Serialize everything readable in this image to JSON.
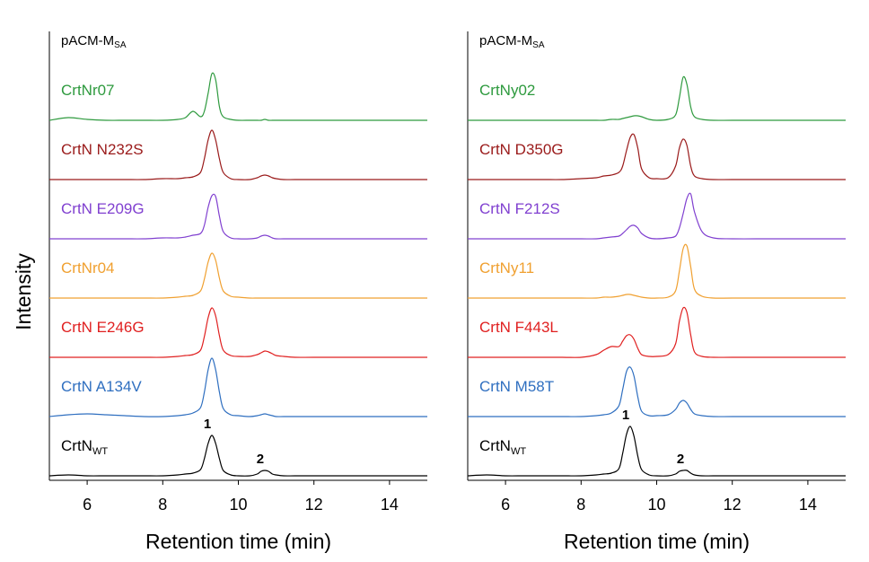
{
  "chart_data": [
    {
      "type": "line",
      "title": "pACM-M",
      "title_sub": "SA",
      "ylabel": "Intensity",
      "xlabel": "Retention time (min)",
      "xlim": [
        5,
        15
      ],
      "xticks": [
        6,
        8,
        10,
        12,
        14
      ],
      "ylim": [
        0,
        100
      ],
      "x": [
        5,
        5.5,
        6,
        6.5,
        7,
        7.5,
        8,
        8.4,
        8.6,
        8.8,
        9.0,
        9.1,
        9.2,
        9.3,
        9.4,
        9.5,
        9.6,
        9.8,
        10.0,
        10.3,
        10.5,
        10.6,
        10.7,
        10.8,
        10.9,
        11.0,
        11.2,
        11.5,
        12,
        13,
        14,
        15
      ],
      "series": [
        {
          "name": "CrtNr07",
          "color": "#2e9a3e",
          "values": [
            0,
            3,
            1,
            0,
            0,
            0,
            0,
            1,
            3,
            10,
            4,
            10,
            30,
            52,
            45,
            15,
            4,
            1,
            0,
            0,
            0,
            0,
            1,
            0,
            0,
            0,
            0,
            0,
            0,
            0,
            0,
            0
          ]
        },
        {
          "name": "CrtN N232S",
          "color": "#9a1a1a",
          "values": [
            0,
            0,
            0,
            0,
            0,
            0,
            1,
            1,
            2,
            3,
            8,
            23,
            44,
            55,
            44,
            23,
            8,
            1,
            0,
            0,
            2,
            4,
            5,
            4,
            2,
            1,
            0,
            0,
            0,
            0,
            0,
            0
          ]
        },
        {
          "name": "CrtN E209G",
          "color": "#8040d0",
          "values": [
            0,
            0,
            0,
            0,
            0,
            0,
            1,
            1,
            2,
            4,
            6,
            15,
            35,
            48,
            47,
            25,
            8,
            1,
            0,
            0,
            1,
            3,
            4,
            3,
            1,
            0,
            0,
            0,
            0,
            0,
            0,
            0
          ]
        },
        {
          "name": "CrtNr04",
          "color": "#f0a030",
          "values": [
            0,
            0,
            0,
            0,
            0,
            0,
            0,
            1,
            2,
            3,
            8,
            21,
            40,
            50,
            42,
            22,
            8,
            2,
            1,
            0,
            0,
            0,
            0,
            0,
            0,
            0,
            0,
            0,
            0,
            0,
            0,
            0
          ]
        },
        {
          "name": "CrtN E246G",
          "color": "#e02020",
          "values": [
            0,
            0,
            0,
            0,
            0,
            0,
            0,
            1,
            2,
            3,
            8,
            23,
            44,
            55,
            46,
            24,
            8,
            2,
            1,
            1,
            3,
            5,
            7,
            6,
            4,
            2,
            1,
            0,
            0,
            0,
            0,
            0
          ]
        },
        {
          "name": "CrtN A134V",
          "color": "#2f6fc0",
          "values": [
            0,
            2,
            3,
            2,
            1,
            0,
            0,
            1,
            2,
            4,
            10,
            27,
            52,
            65,
            52,
            27,
            9,
            2,
            1,
            0,
            1,
            2,
            3,
            2,
            1,
            0,
            0,
            0,
            0,
            0,
            0,
            0
          ]
        },
        {
          "name": "CrtN",
          "name_sub": "WT",
          "color": "#000000",
          "values": [
            0,
            1,
            0,
            0,
            0,
            0,
            0,
            1,
            2,
            3,
            7,
            19,
            36,
            45,
            36,
            19,
            6,
            1,
            0,
            0,
            2,
            5,
            6,
            5,
            2,
            1,
            0,
            0,
            0,
            0,
            0,
            0
          ]
        }
      ],
      "annotations": [
        {
          "text": "1",
          "x": 9.3
        },
        {
          "text": "2",
          "x": 10.7
        }
      ]
    },
    {
      "type": "line",
      "title": "pACM-M",
      "title_sub": "SA",
      "xlabel": "Retention time (min)",
      "xlim": [
        5,
        15
      ],
      "xticks": [
        6,
        8,
        10,
        12,
        14
      ],
      "ylim": [
        0,
        100
      ],
      "x": [
        5,
        5.5,
        6,
        6.5,
        7,
        7.5,
        8,
        8.4,
        8.6,
        8.8,
        9.0,
        9.1,
        9.2,
        9.3,
        9.4,
        9.5,
        9.6,
        9.8,
        10.0,
        10.3,
        10.5,
        10.6,
        10.7,
        10.8,
        10.9,
        11.0,
        11.2,
        11.5,
        12,
        13,
        14,
        15
      ],
      "series": [
        {
          "name": "CrtNy02",
          "color": "#2e9a3e",
          "values": [
            0,
            0,
            0,
            0,
            0,
            0,
            0,
            0,
            0,
            1,
            1,
            2,
            3,
            4,
            5,
            5,
            4,
            1,
            0,
            1,
            6,
            25,
            48,
            40,
            15,
            4,
            1,
            0,
            0,
            0,
            0,
            0
          ]
        },
        {
          "name": "CrtN D350G",
          "color": "#9a1a1a",
          "values": [
            0,
            0,
            0,
            0,
            0,
            0,
            1,
            2,
            4,
            5,
            8,
            15,
            32,
            47,
            50,
            35,
            12,
            2,
            1,
            2,
            15,
            35,
            45,
            38,
            15,
            4,
            1,
            0,
            0,
            0,
            0,
            0
          ]
        },
        {
          "name": "CrtN F212S",
          "color": "#8040d0",
          "values": [
            0,
            0,
            0,
            0,
            0,
            0,
            0,
            0,
            1,
            2,
            3,
            6,
            10,
            14,
            15,
            12,
            6,
            1,
            0,
            1,
            3,
            12,
            28,
            45,
            50,
            30,
            8,
            1,
            0,
            0,
            0,
            0
          ]
        },
        {
          "name": "CrtNy11",
          "color": "#f0a030",
          "values": [
            0,
            0,
            0,
            0,
            0,
            0,
            0,
            0,
            1,
            1,
            2,
            3,
            4,
            4,
            3,
            2,
            1,
            0,
            0,
            1,
            8,
            30,
            55,
            58,
            35,
            10,
            2,
            0,
            0,
            0,
            0,
            0
          ]
        },
        {
          "name": "CrtN F443L",
          "color": "#e02020",
          "values": [
            0,
            0,
            0,
            0,
            0,
            0,
            0,
            3,
            8,
            12,
            12,
            18,
            24,
            25,
            20,
            10,
            3,
            1,
            1,
            3,
            15,
            40,
            55,
            50,
            25,
            6,
            1,
            0,
            0,
            0,
            0,
            0
          ]
        },
        {
          "name": "CrtN M58T",
          "color": "#2f6fc0",
          "values": [
            0,
            0,
            0,
            0,
            0,
            0,
            0,
            1,
            2,
            4,
            12,
            30,
            50,
            55,
            45,
            22,
            6,
            1,
            1,
            2,
            8,
            15,
            18,
            15,
            8,
            3,
            1,
            0,
            0,
            0,
            0,
            0
          ]
        },
        {
          "name": "CrtN",
          "name_sub": "WT",
          "color": "#000000",
          "values": [
            0,
            1,
            0,
            0,
            0,
            0,
            0,
            1,
            2,
            3,
            8,
            25,
            46,
            55,
            44,
            22,
            7,
            1,
            0,
            0,
            2,
            5,
            6,
            6,
            3,
            1,
            0,
            0,
            0,
            0,
            0,
            0
          ]
        }
      ],
      "annotations": [
        {
          "text": "1",
          "x": 9.3
        },
        {
          "text": "2",
          "x": 10.75
        }
      ]
    }
  ]
}
